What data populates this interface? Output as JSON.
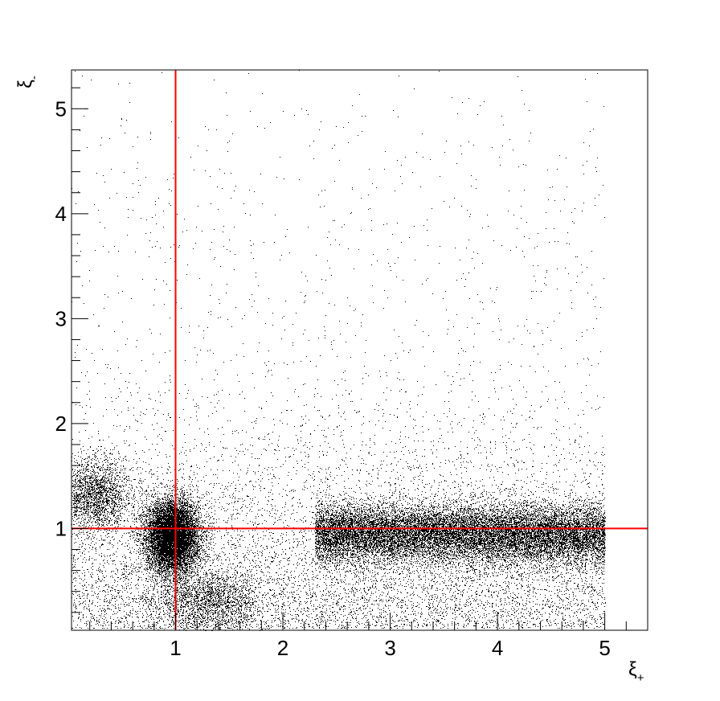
{
  "chart_data": {
    "type": "scatter",
    "title": "",
    "xlabel": {
      "base": "ξ",
      "sub": "+"
    },
    "ylabel": {
      "base": "ξ",
      "sub": "-"
    },
    "xlim": [
      0.03,
      5.4
    ],
    "ylim": [
      0.03,
      5.37
    ],
    "x_ticks": [
      1,
      2,
      3,
      4,
      5
    ],
    "x_tick_labels": [
      "1",
      "2",
      "3",
      "4",
      "5"
    ],
    "y_ticks": [
      1,
      2,
      3,
      4,
      5
    ],
    "y_tick_labels": [
      "1",
      "2",
      "3",
      "4",
      "5"
    ],
    "grid": false,
    "reference_lines": [
      {
        "orientation": "vertical",
        "value": 1,
        "color": "#ff0000"
      },
      {
        "orientation": "horizontal",
        "value": 1,
        "color": "#ff0000"
      }
    ],
    "point_color": "#000000",
    "density_clusters": [
      {
        "x_center": 0.97,
        "y_center": 0.93,
        "x_spread": 0.12,
        "y_spread": 0.17,
        "relative_weight": 0.24
      },
      {
        "x_range": [
          2.3,
          5.0
        ],
        "y_center": 0.95,
        "y_spread": 0.14,
        "relative_weight": 0.42
      },
      {
        "x_center": 0.25,
        "y_center": 1.32,
        "x_spread": 0.16,
        "y_spread": 0.17,
        "relative_weight": 0.05
      },
      {
        "x_center": 1.3,
        "y_center": 0.3,
        "x_spread": 0.25,
        "y_spread": 0.17,
        "relative_weight": 0.05
      }
    ],
    "x_cutoff": 5.0
  }
}
